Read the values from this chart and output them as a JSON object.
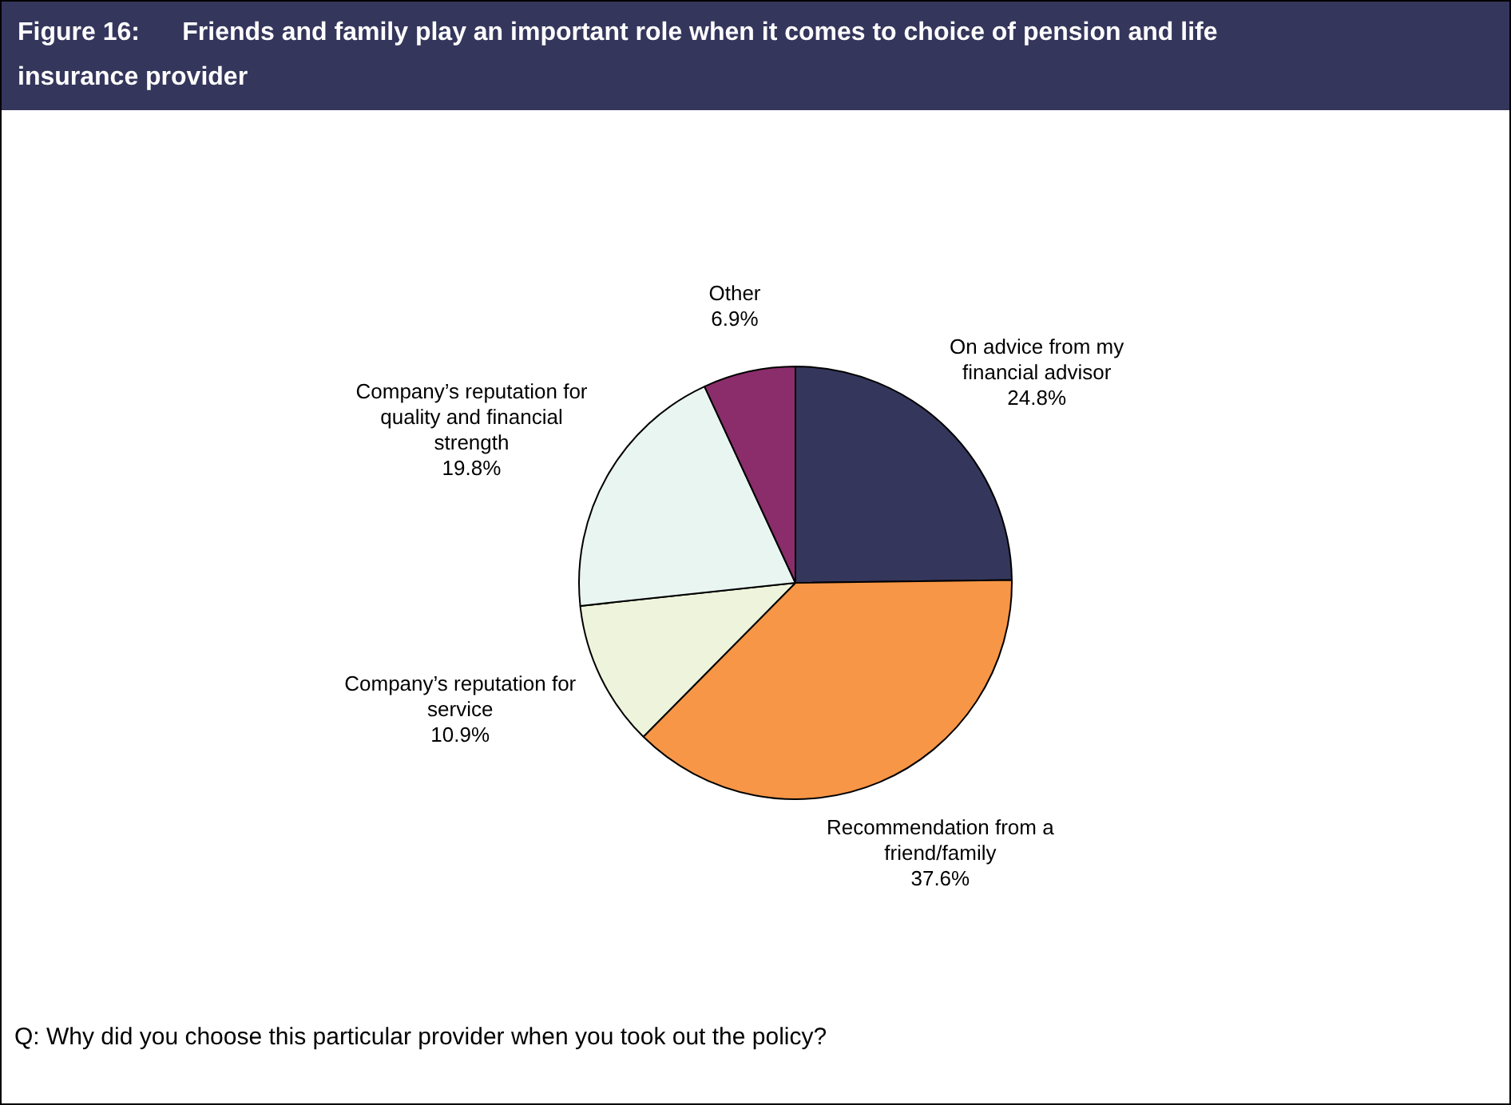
{
  "chart_data": {
    "type": "pie",
    "title": "Figure 16:      Friends and family play an important role when it comes to choice of pension and life insurance provider",
    "categories": [
      "On advice from my financial advisor",
      "Recommendation from a friend/family",
      "Company’s reputation for service",
      "Company’s reputation for quality and financial strength",
      "Other"
    ],
    "values": [
      24.8,
      37.6,
      10.9,
      19.8,
      6.9
    ],
    "value_labels": [
      "24.8%",
      "37.6%",
      "10.9%",
      "19.8%",
      "6.9%"
    ],
    "colors": [
      "#35365c",
      "#f79646",
      "#eef4dc",
      "#e9f5f1",
      "#8b2d6b"
    ],
    "legend": false,
    "annotations": [
      "Q: Why did you choose this particular provider when you took out the policy?"
    ]
  }
}
